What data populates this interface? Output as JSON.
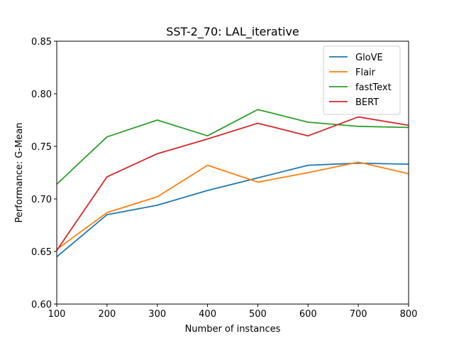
{
  "chart_data": {
    "type": "line",
    "title": "SST-2_70: LAL_iterative",
    "xlabel": "Number of instances",
    "ylabel": "Performance: G-Mean",
    "xlim": [
      100,
      800
    ],
    "ylim": [
      0.6,
      0.85
    ],
    "x": [
      100,
      200,
      300,
      400,
      500,
      600,
      700,
      800
    ],
    "xticks": [
      "100",
      "200",
      "300",
      "400",
      "500",
      "600",
      "700",
      "800"
    ],
    "yticks": [
      "0.60",
      "0.65",
      "0.70",
      "0.75",
      "0.80",
      "0.85"
    ],
    "legend_position": "top-right",
    "grid": false,
    "series": [
      {
        "name": "GloVE",
        "color": "#1f77b4",
        "values": [
          0.645,
          0.685,
          0.694,
          0.708,
          0.72,
          0.732,
          0.734,
          0.733
        ]
      },
      {
        "name": "Flair",
        "color": "#ff7f0e",
        "values": [
          0.652,
          0.687,
          0.702,
          0.732,
          0.716,
          0.725,
          0.735,
          0.724
        ]
      },
      {
        "name": "fastText",
        "color": "#2ca02c",
        "values": [
          0.714,
          0.759,
          0.775,
          0.76,
          0.785,
          0.773,
          0.769,
          0.768
        ]
      },
      {
        "name": "BERT",
        "color": "#d62728",
        "values": [
          0.651,
          0.721,
          0.743,
          0.757,
          0.772,
          0.76,
          0.778,
          0.77
        ]
      }
    ]
  }
}
